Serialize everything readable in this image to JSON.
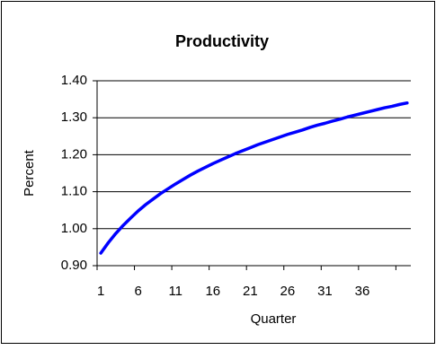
{
  "chart_data": {
    "type": "line",
    "title": "Productivity",
    "x_label": "Quarter",
    "y_label": "Percent",
    "categories": [
      1,
      null,
      null,
      null,
      null,
      6,
      null,
      null,
      null,
      null,
      11,
      null,
      null,
      null,
      null,
      16,
      null,
      null,
      null,
      null,
      21,
      null,
      null,
      null,
      null,
      26,
      null,
      null,
      null,
      null,
      31,
      null,
      null,
      null,
      null,
      36,
      null,
      null,
      null,
      null,
      null,
      null
    ],
    "series": [
      {
        "name": "Productivity",
        "color": "#0000ff",
        "values": [
          0.934,
          0.962,
          0.987,
          1.009,
          1.029,
          1.048,
          1.065,
          1.08,
          1.095,
          1.108,
          1.121,
          1.133,
          1.145,
          1.156,
          1.166,
          1.176,
          1.185,
          1.194,
          1.203,
          1.211,
          1.219,
          1.227,
          1.234,
          1.241,
          1.248,
          1.255,
          1.261,
          1.267,
          1.274,
          1.28,
          1.285,
          1.291,
          1.296,
          1.302,
          1.307,
          1.312,
          1.317,
          1.322,
          1.327,
          1.331,
          1.336,
          1.34
        ]
      }
    ],
    "ylim": [
      0.9,
      1.4
    ],
    "yticks": [
      {
        "value": 0.9,
        "label": "0.90"
      },
      {
        "value": 1.0,
        "label": "1.00"
      },
      {
        "value": 1.1,
        "label": "1.10"
      },
      {
        "value": 1.2,
        "label": "1.20"
      },
      {
        "value": 1.3,
        "label": "1.30"
      },
      {
        "value": 1.4,
        "label": "1.40"
      }
    ],
    "grid": true
  }
}
